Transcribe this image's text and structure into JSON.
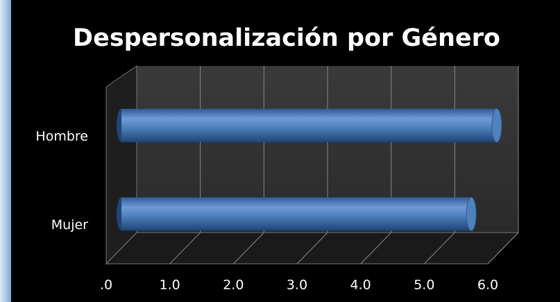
{
  "chart_data": {
    "type": "bar",
    "orientation": "horizontal",
    "title": "Despersonalización por Género",
    "categories": [
      "Hombre",
      "Mujer"
    ],
    "values": [
      5.9,
      5.5
    ],
    "color": "#4f81bd",
    "xlim": [
      0,
      6
    ],
    "xticks": [
      {
        "value": 0,
        "label": ".0"
      },
      {
        "value": 1,
        "label": "1.0"
      },
      {
        "value": 2,
        "label": "2.0"
      },
      {
        "value": 3,
        "label": "3.0"
      },
      {
        "value": 4,
        "label": "4.0"
      },
      {
        "value": 5,
        "label": "5.0"
      },
      {
        "value": 6,
        "label": "6.0"
      }
    ],
    "grid": true
  }
}
